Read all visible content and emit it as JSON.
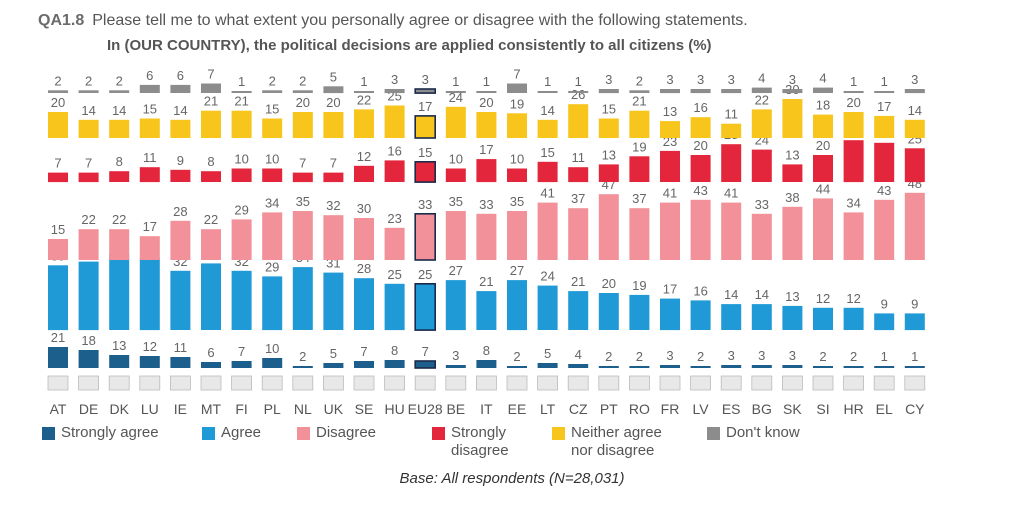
{
  "question": {
    "id": "QA1.8",
    "text": "Please tell me to what extent you personally agree or disagree with the following statements."
  },
  "base_note": "Base: All respondents (N=28,031)",
  "chart_data": {
    "type": "bar",
    "title": "In (OUR COUNTRY), the political decisions are applied consistently to all citizens  (%)",
    "highlight": "EU28",
    "categories": [
      "AT",
      "DE",
      "DK",
      "LU",
      "IE",
      "MT",
      "FI",
      "PL",
      "NL",
      "UK",
      "SE",
      "HU",
      "EU28",
      "BE",
      "IT",
      "EE",
      "LT",
      "CZ",
      "PT",
      "RO",
      "FR",
      "LV",
      "ES",
      "BG",
      "SK",
      "SI",
      "HR",
      "EL",
      "CY"
    ],
    "series": [
      {
        "name": "Strongly agree",
        "color": "#1d5f8c",
        "values": [
          21,
          18,
          13,
          12,
          11,
          6,
          7,
          10,
          2,
          5,
          7,
          8,
          7,
          3,
          8,
          2,
          5,
          4,
          2,
          2,
          3,
          2,
          3,
          3,
          3,
          2,
          2,
          1,
          1
        ]
      },
      {
        "name": "Agree",
        "color": "#1f9ad6",
        "values": [
          35,
          37,
          41,
          39,
          32,
          36,
          32,
          29,
          34,
          31,
          28,
          25,
          25,
          27,
          21,
          27,
          24,
          21,
          20,
          19,
          17,
          16,
          14,
          14,
          13,
          12,
          12,
          9,
          9
        ]
      },
      {
        "name": "Disagree",
        "color": "#f29199",
        "values": [
          15,
          22,
          22,
          17,
          28,
          22,
          29,
          34,
          35,
          32,
          30,
          23,
          33,
          35,
          33,
          35,
          41,
          37,
          47,
          37,
          41,
          43,
          41,
          33,
          38,
          44,
          34,
          43,
          48
        ]
      },
      {
        "name": "Strongly disagree",
        "color": "#e3263b",
        "values": [
          7,
          7,
          8,
          11,
          9,
          8,
          10,
          10,
          7,
          7,
          12,
          16,
          15,
          10,
          17,
          10,
          15,
          11,
          13,
          19,
          23,
          20,
          28,
          24,
          13,
          20,
          31,
          29,
          25
        ]
      },
      {
        "name": "Neither agree nor disagree",
        "color": "#f7c51c",
        "values": [
          20,
          14,
          14,
          15,
          14,
          21,
          21,
          15,
          20,
          20,
          22,
          25,
          17,
          24,
          20,
          19,
          14,
          26,
          15,
          21,
          13,
          16,
          11,
          22,
          30,
          18,
          20,
          17,
          14
        ]
      },
      {
        "name": "Don't know",
        "color": "#8c8c8c",
        "values": [
          2,
          2,
          2,
          6,
          6,
          7,
          1,
          2,
          2,
          5,
          1,
          3,
          3,
          1,
          1,
          7,
          1,
          1,
          3,
          2,
          3,
          3,
          3,
          4,
          3,
          4,
          1,
          1,
          3
        ]
      }
    ]
  },
  "legend": [
    {
      "label": "Strongly agree",
      "color": "#1d5f8c"
    },
    {
      "label": "Agree",
      "color": "#1f9ad6"
    },
    {
      "label": "Disagree",
      "color": "#f29199"
    },
    {
      "label": "Strongly\ndisagree",
      "color": "#e3263b"
    },
    {
      "label": "Neither agree\nnor disagree",
      "color": "#f7c51c"
    },
    {
      "label": "Don't know",
      "color": "#8c8c8c"
    }
  ]
}
